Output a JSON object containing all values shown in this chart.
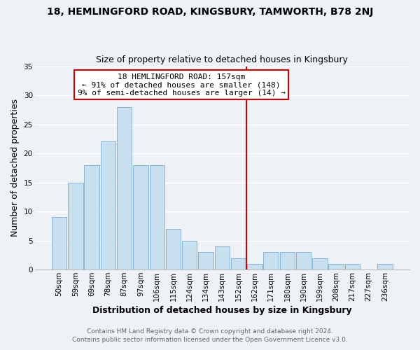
{
  "title": "18, HEMLINGFORD ROAD, KINGSBURY, TAMWORTH, B78 2NJ",
  "subtitle": "Size of property relative to detached houses in Kingsbury",
  "xlabel": "Distribution of detached houses by size in Kingsbury",
  "ylabel": "Number of detached properties",
  "bar_labels": [
    "50sqm",
    "59sqm",
    "69sqm",
    "78sqm",
    "87sqm",
    "97sqm",
    "106sqm",
    "115sqm",
    "124sqm",
    "134sqm",
    "143sqm",
    "152sqm",
    "162sqm",
    "171sqm",
    "180sqm",
    "190sqm",
    "199sqm",
    "208sqm",
    "217sqm",
    "227sqm",
    "236sqm"
  ],
  "bar_values": [
    9,
    15,
    18,
    22,
    28,
    18,
    18,
    7,
    5,
    3,
    4,
    2,
    1,
    3,
    3,
    3,
    2,
    1,
    1,
    0,
    1
  ],
  "bar_color": "#c8dff0",
  "bar_edgecolor": "#8ab4d0",
  "vline_color": "#cc0000",
  "annotation_title": "18 HEMLINGFORD ROAD: 157sqm",
  "annotation_line1": "← 91% of detached houses are smaller (148)",
  "annotation_line2": "9% of semi-detached houses are larger (14) →",
  "annotation_box_color": "#ffffff",
  "annotation_box_edgecolor": "#cc0000",
  "ylim": [
    0,
    35
  ],
  "yticks": [
    0,
    5,
    10,
    15,
    20,
    25,
    30,
    35
  ],
  "footer1": "Contains HM Land Registry data © Crown copyright and database right 2024.",
  "footer2": "Contains public sector information licensed under the Open Government Licence v3.0.",
  "background_color": "#eef2f7",
  "grid_color": "#ffffff",
  "title_fontsize": 10,
  "subtitle_fontsize": 9,
  "axis_label_fontsize": 9,
  "tick_fontsize": 7.5,
  "footer_fontsize": 6.5,
  "annotation_fontsize": 8
}
